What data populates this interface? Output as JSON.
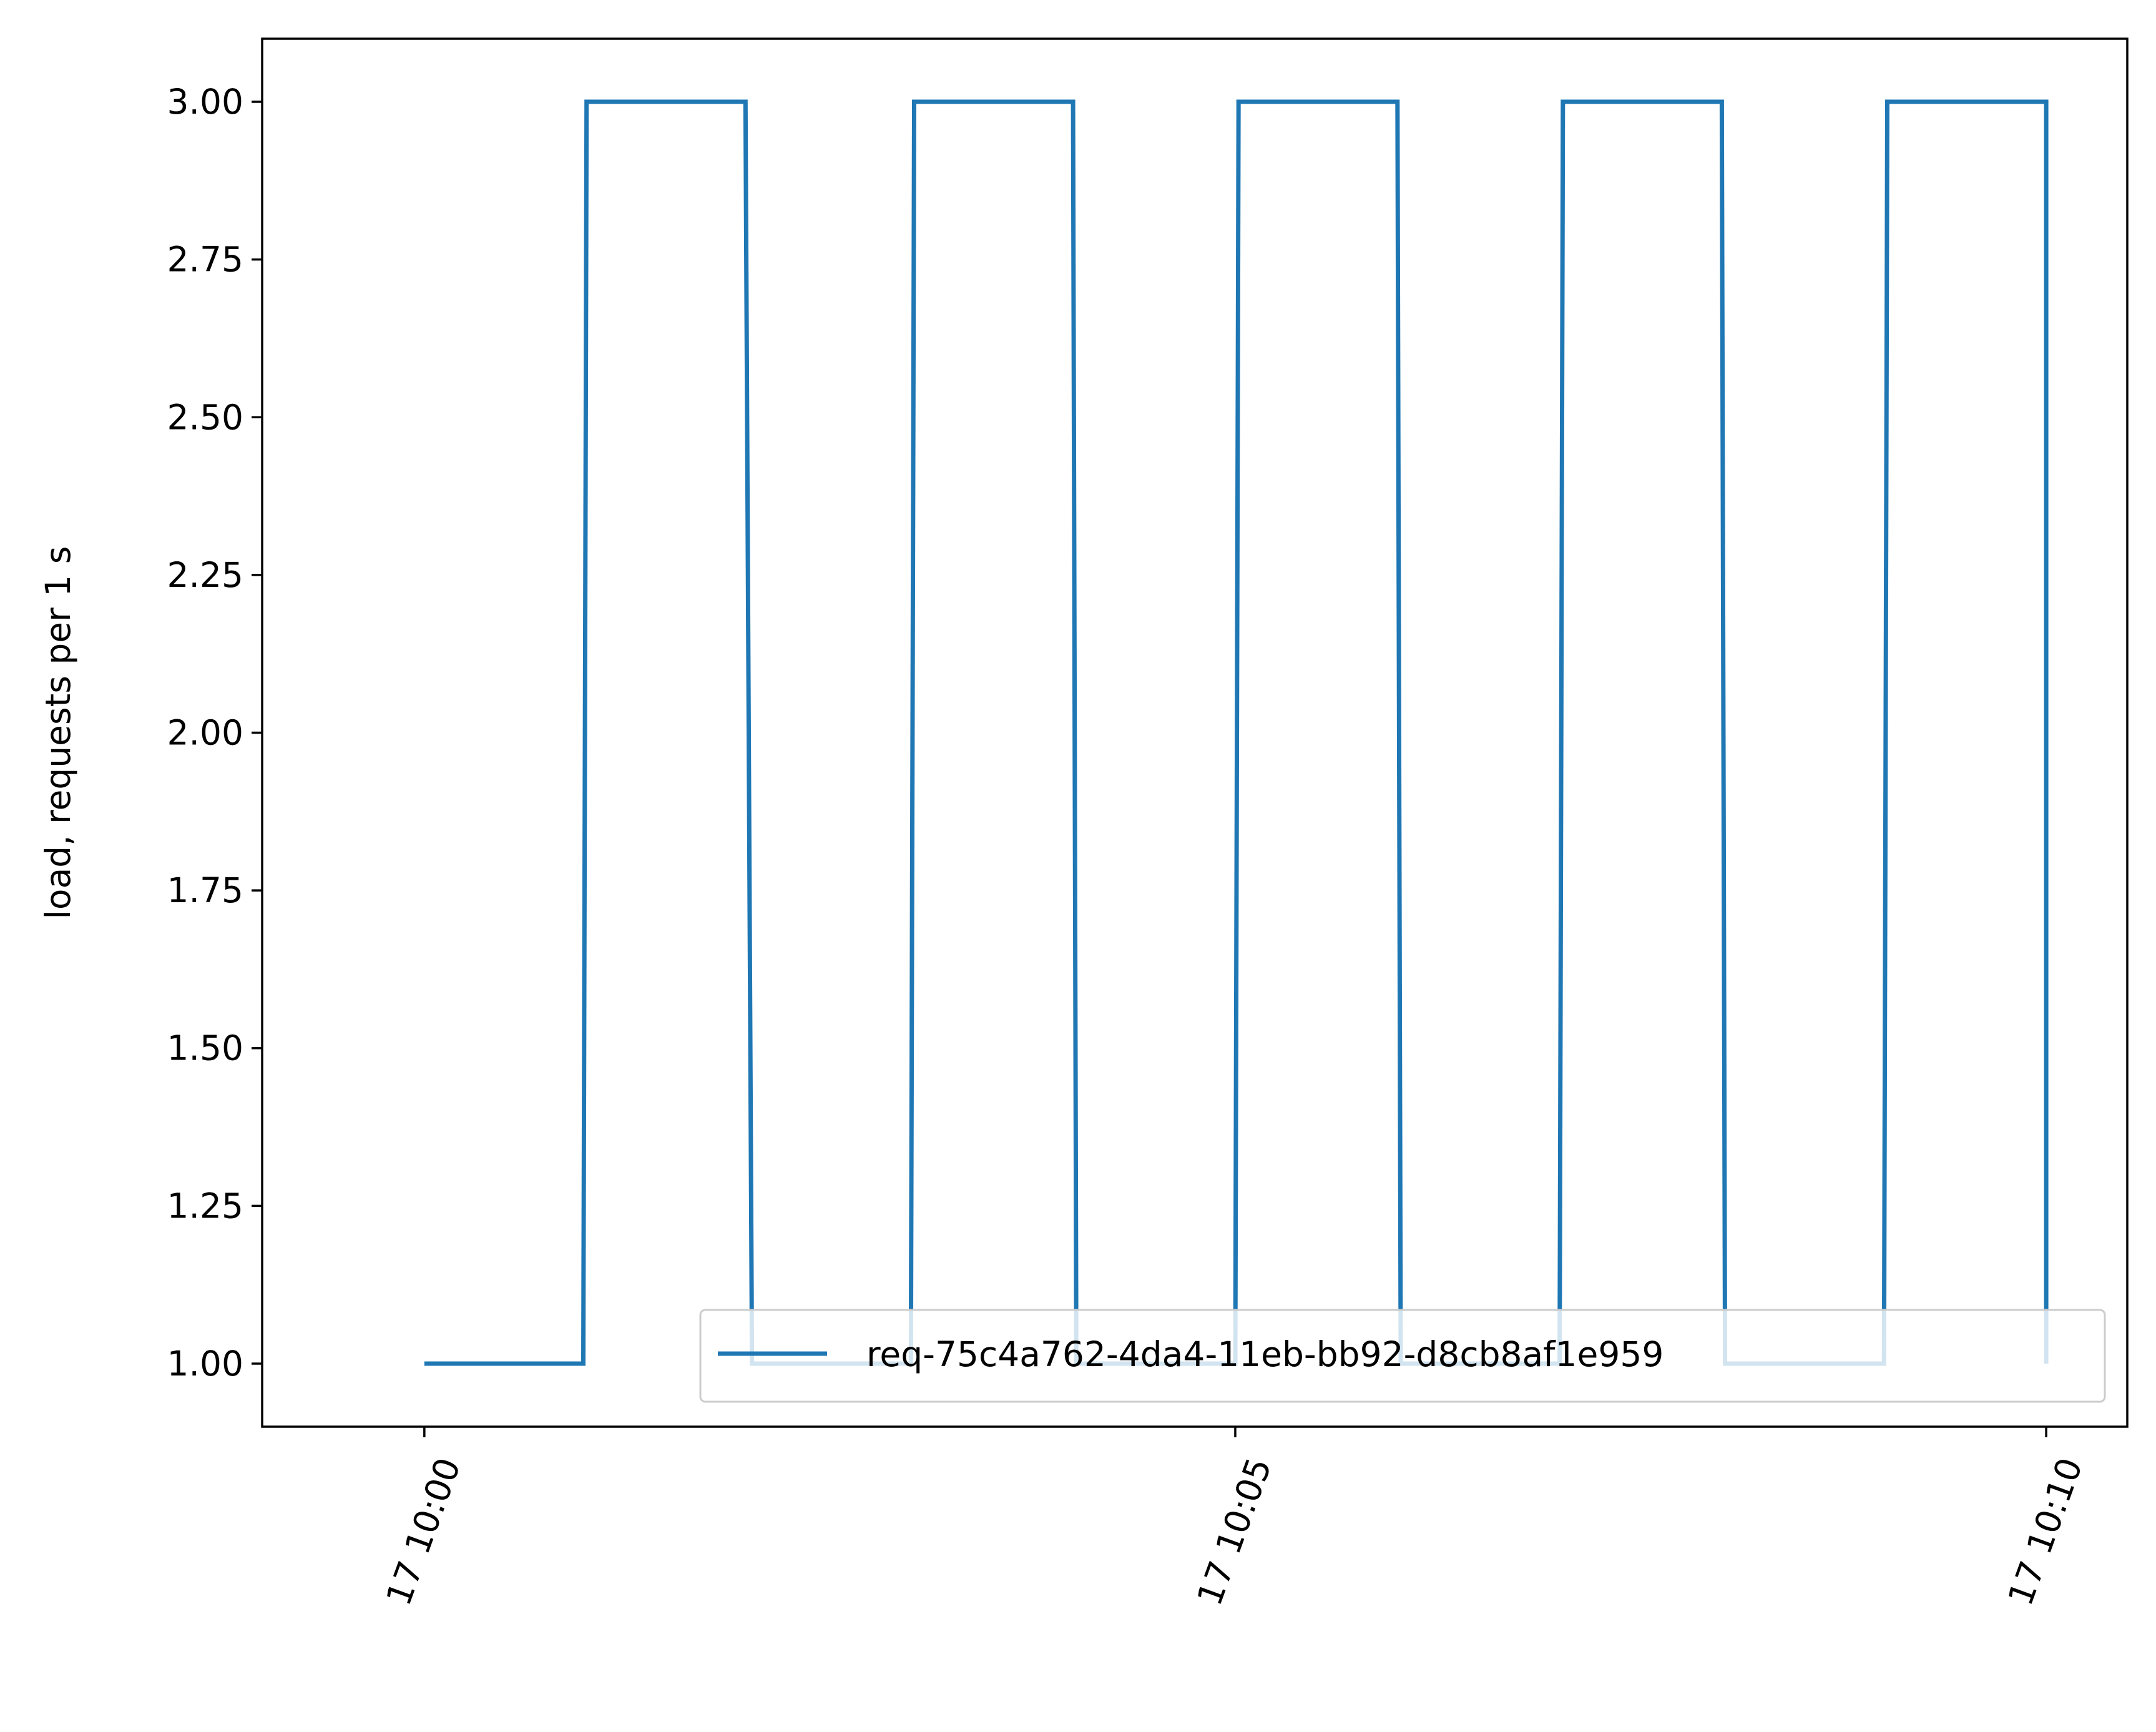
{
  "chart_data": {
    "type": "line",
    "title": "",
    "xlabel": "",
    "ylabel": "load, requests per 1 s",
    "x_unit": "minutes after 17 10:00",
    "xlim": [
      -1.0,
      10.5
    ],
    "ylim": [
      0.9,
      3.1
    ],
    "x_ticks": [
      {
        "value": 0,
        "label": "17 10:00"
      },
      {
        "value": 5,
        "label": "17 10:05"
      },
      {
        "value": 10,
        "label": "17 10:10"
      }
    ],
    "y_ticks": [
      {
        "value": 1.0,
        "label": "1.00"
      },
      {
        "value": 1.25,
        "label": "1.25"
      },
      {
        "value": 1.5,
        "label": "1.50"
      },
      {
        "value": 1.75,
        "label": "1.75"
      },
      {
        "value": 2.0,
        "label": "2.00"
      },
      {
        "value": 2.25,
        "label": "2.25"
      },
      {
        "value": 2.5,
        "label": "2.50"
      },
      {
        "value": 2.75,
        "label": "2.75"
      },
      {
        "value": 3.0,
        "label": "3.00"
      }
    ],
    "grid": false,
    "legend_position": "lower right",
    "series": [
      {
        "name": "req-75c4a762-4da4-11eb-bb92-d8cb8af1e959",
        "color": "#1f77b4",
        "step": true,
        "x": [
          0,
          0.98,
          1.0,
          1.98,
          2.02,
          3.0,
          3.02,
          4.0,
          4.02,
          5.0,
          5.02,
          6.0,
          6.02,
          7.0,
          7.02,
          8.0,
          8.02,
          9.0,
          9.02,
          10.0,
          10.0
        ],
        "y": [
          1,
          1,
          3,
          3,
          1,
          1,
          3,
          3,
          1,
          1,
          3,
          3,
          1,
          1,
          3,
          3,
          1,
          1,
          3,
          3,
          1
        ]
      }
    ]
  }
}
